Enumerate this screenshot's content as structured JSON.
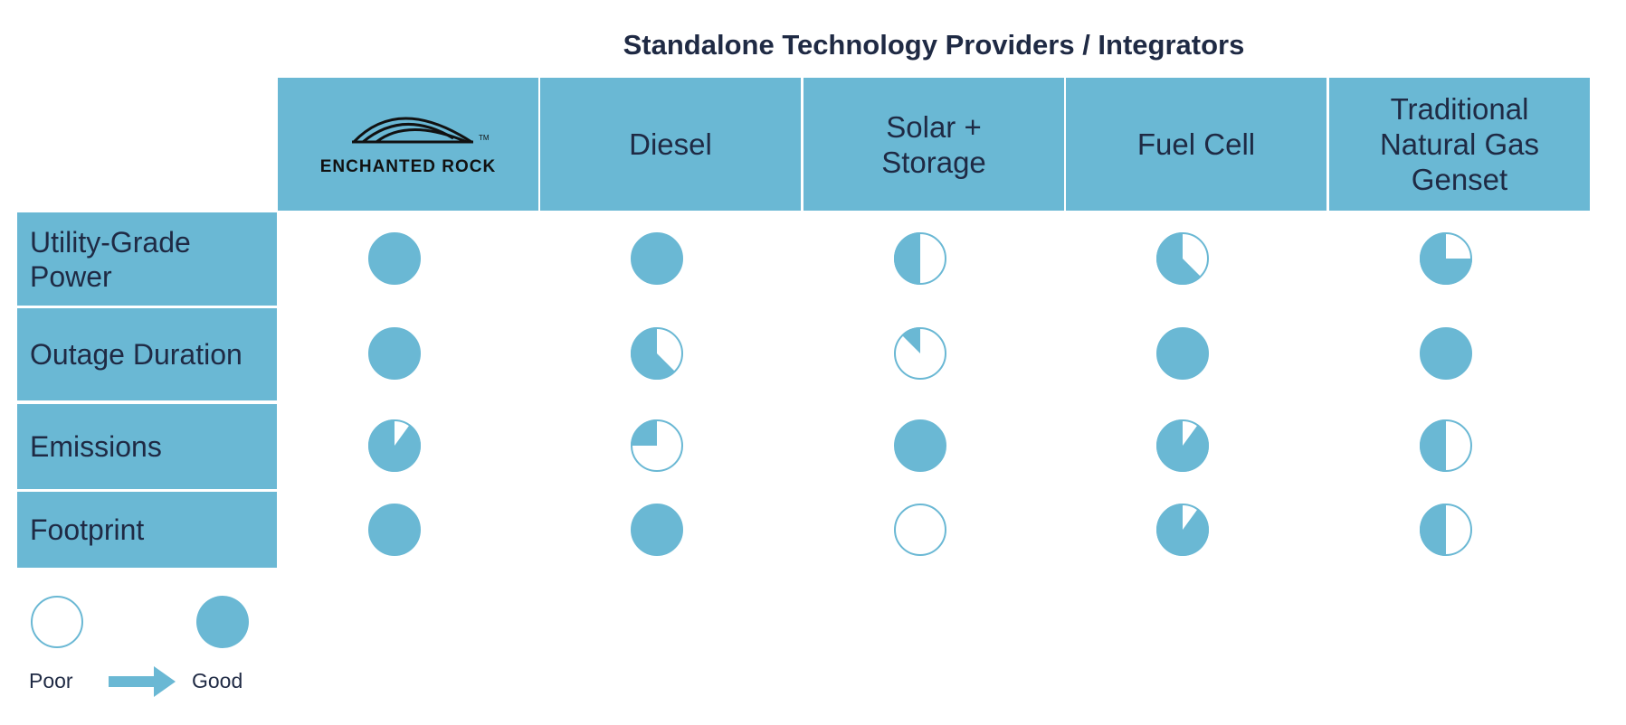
{
  "title": "Standalone Technology Providers / Integrators",
  "columns": [
    {
      "label": "ENCHANTED ROCK",
      "logo": true
    },
    {
      "label": "Diesel"
    },
    {
      "label": "Solar + Storage"
    },
    {
      "label": "Fuel Cell"
    },
    {
      "label": "Traditional Natural Gas Genset"
    }
  ],
  "logo": {
    "tm": "TM"
  },
  "rows": [
    {
      "label": "Utility-Grade Power",
      "scores": [
        1,
        1,
        0.5,
        0.625,
        0.75
      ]
    },
    {
      "label": "Outage Duration",
      "scores": [
        1,
        0.625,
        0.125,
        1,
        1
      ]
    },
    {
      "label": "Emissions",
      "scores": [
        0.9,
        0.25,
        1,
        0.9,
        0.5
      ]
    },
    {
      "label": "Footprint",
      "scores": [
        1,
        1,
        0,
        0.9,
        0.5
      ]
    }
  ],
  "legend": {
    "poor": "Poor",
    "good": "Good"
  },
  "colors": {
    "accent": "#6ab8d4",
    "text": "#1f2a44"
  }
}
